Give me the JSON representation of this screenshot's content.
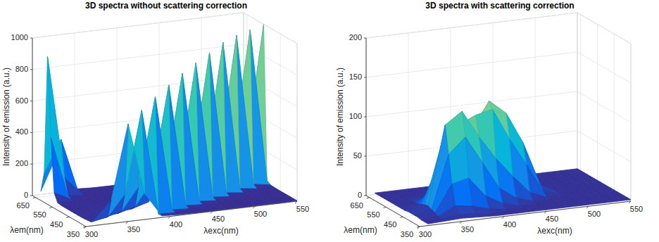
{
  "chart_data": [
    {
      "type": "surface",
      "title": "3D spectra without scattering correction",
      "xlabel": "λexc(nm)",
      "ylabel": "λem(nm)",
      "zlabel": "Intensity of emission (a.u.)",
      "x": [
        310,
        330,
        350,
        370,
        390,
        410,
        430,
        450,
        470,
        490,
        510,
        530,
        550
      ],
      "y": [
        350,
        370,
        390,
        410,
        430,
        450,
        470,
        490,
        510,
        530,
        550,
        570,
        590,
        610,
        630,
        650,
        670
      ],
      "z": [
        [
          40,
          150,
          620,
          160,
          10,
          5,
          4,
          3,
          3,
          3,
          3,
          3,
          3
        ],
        [
          10,
          30,
          160,
          680,
          10,
          5,
          4,
          3,
          3,
          3,
          3,
          3,
          3
        ],
        [
          8,
          12,
          40,
          180,
          740,
          10,
          5,
          4,
          3,
          3,
          3,
          3,
          3
        ],
        [
          6,
          8,
          15,
          45,
          190,
          790,
          12,
          6,
          4,
          3,
          3,
          3,
          3
        ],
        [
          5,
          6,
          10,
          18,
          50,
          200,
          840,
          14,
          6,
          4,
          3,
          3,
          3
        ],
        [
          5,
          6,
          12,
          20,
          40,
          80,
          210,
          880,
          16,
          6,
          4,
          3,
          3
        ],
        [
          5,
          6,
          10,
          25,
          45,
          90,
          100,
          220,
          920,
          18,
          6,
          4,
          3
        ],
        [
          5,
          5,
          8,
          15,
          30,
          60,
          70,
          60,
          230,
          960,
          20,
          6,
          4
        ],
        [
          5,
          5,
          6,
          10,
          15,
          30,
          35,
          30,
          30,
          240,
          980,
          22,
          6
        ],
        [
          5,
          5,
          5,
          6,
          8,
          12,
          14,
          12,
          10,
          10,
          250,
          990,
          22
        ],
        [
          6,
          5,
          5,
          5,
          5,
          6,
          6,
          6,
          5,
          5,
          8,
          250,
          1000
        ],
        [
          10,
          5,
          4,
          4,
          4,
          4,
          4,
          4,
          4,
          4,
          4,
          6,
          250
        ],
        [
          60,
          8,
          4,
          4,
          3,
          3,
          3,
          3,
          3,
          3,
          3,
          3,
          5
        ],
        [
          400,
          20,
          5,
          4,
          3,
          3,
          3,
          3,
          3,
          3,
          3,
          3,
          3
        ],
        [
          900,
          120,
          6,
          4,
          3,
          3,
          3,
          3,
          3,
          3,
          3,
          3,
          3
        ],
        [
          150,
          350,
          8,
          4,
          3,
          3,
          3,
          3,
          3,
          3,
          3,
          3,
          3
        ],
        [
          20,
          250,
          10,
          4,
          3,
          3,
          3,
          3,
          3,
          3,
          3,
          3,
          3
        ]
      ],
      "xlim": [
        300,
        550
      ],
      "xticks": [
        300,
        350,
        400,
        450,
        500,
        550
      ],
      "ylim": [
        350,
        670
      ],
      "yticks": [
        350,
        450,
        550,
        650
      ],
      "zlim": [
        0,
        1000
      ],
      "zticks": [
        0,
        200,
        400,
        600,
        800,
        1000
      ],
      "grid": true
    },
    {
      "type": "surface",
      "title": "3D spectra with scattering correction",
      "xlabel": "λexc(nm)",
      "ylabel": "λem(nm)",
      "zlabel": "Intensity of emission (a.u.)",
      "x": [
        310,
        330,
        350,
        370,
        390,
        410,
        430,
        450,
        470,
        490,
        510,
        530,
        550
      ],
      "y": [
        350,
        370,
        390,
        410,
        430,
        450,
        470,
        490,
        510,
        530,
        550,
        570,
        590,
        610,
        630,
        650,
        670
      ],
      "z": [
        [
          2,
          3,
          4,
          3,
          2,
          2,
          2,
          2,
          2,
          2,
          2,
          2,
          2
        ],
        [
          2,
          3,
          6,
          5,
          2,
          2,
          2,
          2,
          2,
          2,
          2,
          2,
          2
        ],
        [
          2,
          4,
          15,
          12,
          6,
          2,
          2,
          2,
          2,
          2,
          2,
          2,
          2
        ],
        [
          3,
          6,
          40,
          45,
          20,
          8,
          2,
          2,
          2,
          2,
          2,
          2,
          2
        ],
        [
          3,
          8,
          75,
          95,
          60,
          25,
          10,
          3,
          2,
          2,
          2,
          2,
          2
        ],
        [
          3,
          10,
          110,
          125,
          90,
          60,
          35,
          12,
          3,
          2,
          2,
          2,
          2
        ],
        [
          3,
          9,
          85,
          105,
          115,
          120,
          80,
          45,
          8,
          2,
          2,
          2,
          2
        ],
        [
          2,
          7,
          55,
          70,
          95,
          128,
          110,
          70,
          15,
          3,
          2,
          2,
          2
        ],
        [
          2,
          5,
          30,
          40,
          60,
          85,
          75,
          50,
          12,
          3,
          2,
          2,
          2
        ],
        [
          2,
          4,
          15,
          20,
          30,
          40,
          35,
          25,
          8,
          2,
          2,
          2,
          2
        ],
        [
          2,
          3,
          8,
          10,
          14,
          18,
          16,
          12,
          5,
          2,
          2,
          2,
          2
        ],
        [
          2,
          3,
          5,
          5,
          7,
          8,
          7,
          6,
          3,
          2,
          2,
          2,
          2
        ],
        [
          2,
          3,
          3,
          3,
          4,
          4,
          4,
          3,
          2,
          2,
          2,
          2,
          2
        ],
        [
          2,
          2,
          3,
          3,
          3,
          3,
          3,
          2,
          2,
          2,
          2,
          2,
          2
        ],
        [
          2,
          2,
          2,
          2,
          2,
          2,
          2,
          2,
          2,
          2,
          2,
          2,
          2
        ],
        [
          2,
          2,
          2,
          2,
          2,
          2,
          2,
          2,
          2,
          2,
          2,
          2,
          2
        ],
        [
          2,
          2,
          2,
          2,
          2,
          2,
          2,
          2,
          2,
          2,
          2,
          2,
          2
        ]
      ],
      "xlim": [
        300,
        550
      ],
      "xticks": [
        300,
        350,
        400,
        450,
        500,
        550
      ],
      "ylim": [
        350,
        670
      ],
      "yticks": [
        350,
        450,
        550,
        650
      ],
      "zlim": [
        0,
        200
      ],
      "zticks": [
        0,
        50,
        100,
        150,
        200
      ],
      "grid": true
    }
  ]
}
